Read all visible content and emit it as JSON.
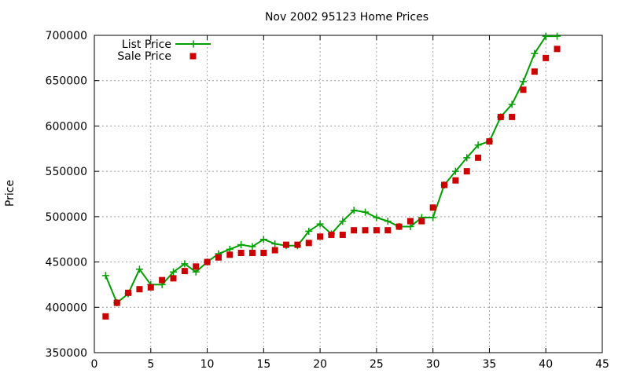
{
  "chart_data": {
    "type": "line",
    "title": "Nov 2002 95123 Home Prices",
    "xlabel": "",
    "ylabel": "Price",
    "xlim": [
      0,
      45
    ],
    "ylim": [
      350000,
      700000
    ],
    "x_ticks": [
      0,
      5,
      10,
      15,
      20,
      25,
      30,
      35,
      40,
      45
    ],
    "y_ticks": [
      350000,
      400000,
      450000,
      500000,
      550000,
      600000,
      650000,
      700000
    ],
    "grid": true,
    "legend_position": "top-left",
    "series": [
      {
        "name": "List Price",
        "style": "line-with-plus-markers",
        "color": "#00a000",
        "x": [
          1,
          2,
          3,
          4,
          5,
          6,
          7,
          8,
          9,
          10,
          11,
          12,
          13,
          14,
          15,
          16,
          17,
          18,
          19,
          20,
          21,
          22,
          23,
          24,
          25,
          26,
          27,
          28,
          29,
          30,
          31,
          32,
          33,
          34,
          35,
          36,
          37,
          38,
          39,
          40,
          41
        ],
        "y": [
          435000,
          405000,
          415000,
          442000,
          425000,
          425000,
          439000,
          448000,
          439000,
          450000,
          459000,
          464000,
          469000,
          467000,
          475000,
          470000,
          468000,
          468000,
          484000,
          492000,
          481000,
          495000,
          507000,
          505000,
          499000,
          495000,
          489000,
          489000,
          499000,
          499000,
          535000,
          550000,
          565000,
          579000,
          583000,
          610000,
          624000,
          649000,
          680000,
          699000,
          699000
        ]
      },
      {
        "name": "Sale Price",
        "style": "square-markers",
        "color": "#cc0000",
        "x": [
          1,
          2,
          3,
          4,
          5,
          6,
          7,
          8,
          9,
          10,
          11,
          12,
          13,
          14,
          15,
          16,
          17,
          18,
          19,
          20,
          21,
          22,
          23,
          24,
          25,
          26,
          27,
          28,
          29,
          30,
          31,
          32,
          33,
          34,
          35,
          36,
          37,
          38,
          39,
          40,
          41
        ],
        "y": [
          390000,
          405000,
          416000,
          420000,
          422000,
          430000,
          432000,
          440000,
          445000,
          450000,
          455000,
          458000,
          460000,
          460000,
          460000,
          463000,
          469000,
          469000,
          471000,
          478000,
          480000,
          480000,
          485000,
          485000,
          485000,
          485000,
          489000,
          495000,
          495000,
          510000,
          535000,
          540000,
          550000,
          565000,
          583000,
          610000,
          610000,
          640000,
          660000,
          675000,
          685000
        ]
      }
    ]
  }
}
